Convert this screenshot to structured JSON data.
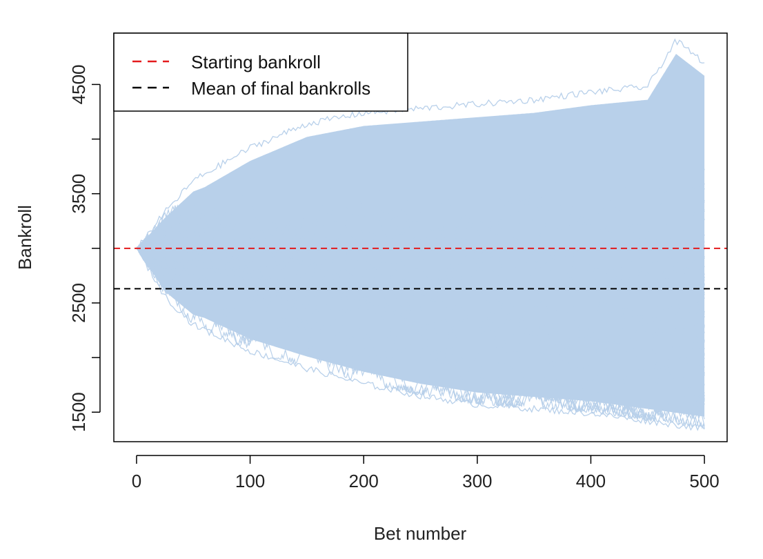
{
  "chart_data": {
    "type": "line",
    "title": "",
    "xlabel": "Bet number",
    "ylabel": "Bankroll",
    "xlim": [
      -20,
      520
    ],
    "ylim": [
      1230,
      4970
    ],
    "x_ticks": [
      0,
      100,
      200,
      300,
      400,
      500
    ],
    "y_ticks": [
      1500,
      2000,
      2500,
      3000,
      3500,
      4000,
      4500
    ],
    "y_tick_labels": [
      "1500",
      "",
      "2500",
      "",
      "3500",
      "",
      "4500"
    ],
    "grid": false,
    "legend_position": "top-left",
    "simulation": {
      "num_bets": 500,
      "starting_value": 3000,
      "mean_final_value": 2630,
      "envelope_upper": [
        [
          0,
          3000
        ],
        [
          25,
          3330
        ],
        [
          50,
          3620
        ],
        [
          100,
          3920
        ],
        [
          150,
          4140
        ],
        [
          200,
          4240
        ],
        [
          250,
          4280
        ],
        [
          300,
          4320
        ],
        [
          350,
          4360
        ],
        [
          400,
          4430
        ],
        [
          450,
          4480
        ],
        [
          475,
          4900
        ],
        [
          500,
          4700
        ]
      ],
      "envelope_lower": [
        [
          0,
          3000
        ],
        [
          25,
          2560
        ],
        [
          50,
          2300
        ],
        [
          100,
          2060
        ],
        [
          150,
          1900
        ],
        [
          200,
          1760
        ],
        [
          250,
          1650
        ],
        [
          300,
          1570
        ],
        [
          350,
          1530
        ],
        [
          400,
          1490
        ],
        [
          450,
          1420
        ],
        [
          500,
          1350
        ]
      ],
      "series_color": "#b8d0ea"
    },
    "reference_lines": [
      {
        "name": "Starting bankroll",
        "y": 3000,
        "color": "#e31a1c",
        "style": "dashed"
      },
      {
        "name": "Mean of final bankrolls",
        "y": 2630,
        "color": "#000000",
        "style": "dashed"
      }
    ]
  },
  "legend": {
    "items": [
      {
        "label": "Starting bankroll",
        "color": "#e31a1c"
      },
      {
        "label": "Mean of final bankrolls",
        "color": "#000000"
      }
    ]
  }
}
